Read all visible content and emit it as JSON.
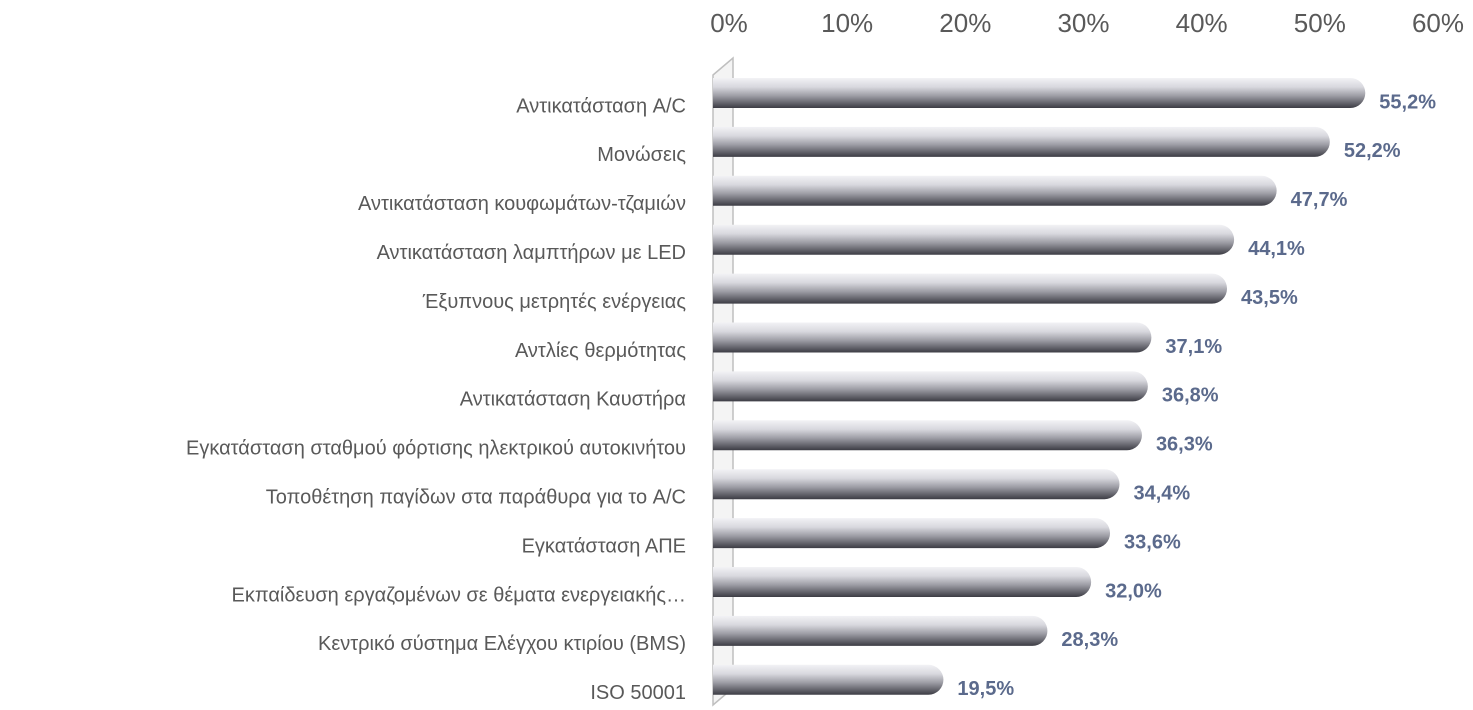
{
  "chart_data": {
    "type": "bar",
    "orientation": "horizontal",
    "categories": [
      "Αντικατάσταση A/C",
      "Μονώσεις",
      "Αντικατάσταση κουφωμάτων-τζαμιών",
      "Αντικατάσταση λαμπτήρων με LED",
      "Έξυπνους μετρητές ενέργειας",
      "Αντλίες θερμότητας",
      "Αντικατάσταση  Καυστήρα",
      "Εγκατάσταση σταθμού φόρτισης ηλεκτρικού αυτοκινήτου",
      "Τοποθέτηση παγίδων στα παράθυρα για το A/C",
      "Εγκατάσταση ΑΠΕ",
      "Εκπαίδευση εργαζομένων σε θέματα ενεργειακής…",
      "Κεντρικό σύστημα Ελέγχου κτιρίου (BMS)",
      "ISO 50001"
    ],
    "values": [
      55.2,
      52.2,
      47.7,
      44.1,
      43.5,
      37.1,
      36.8,
      36.3,
      34.4,
      33.6,
      32.0,
      28.3,
      19.5
    ],
    "value_labels": [
      "55,2%",
      "52,2%",
      "47,7%",
      "44,1%",
      "43,5%",
      "37,1%",
      "36,8%",
      "36,3%",
      "34,4%",
      "33,6%",
      "32,0%",
      "28,3%",
      "19,5%"
    ],
    "color": "#9c9ca4",
    "xlim": [
      0,
      60
    ],
    "xticks": [
      {
        "value": 0,
        "label": "0%"
      },
      {
        "value": 10,
        "label": "10%"
      },
      {
        "value": 20,
        "label": "20%"
      },
      {
        "value": 30,
        "label": "30%"
      },
      {
        "value": 40,
        "label": "40%"
      },
      {
        "value": 50,
        "label": "50%"
      },
      {
        "value": 60,
        "label": "60%"
      }
    ],
    "grid": false
  }
}
